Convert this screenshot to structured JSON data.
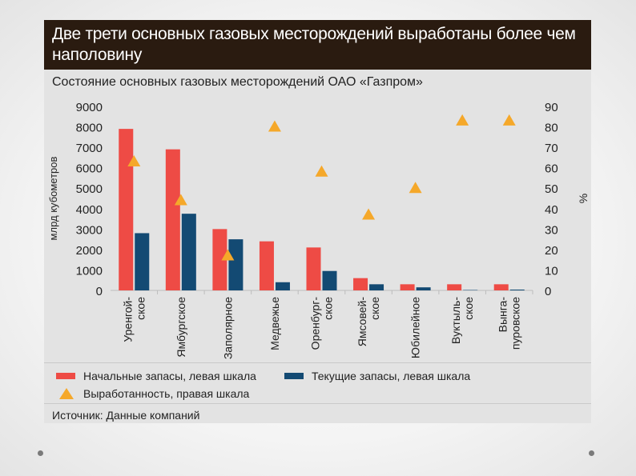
{
  "title": "Две трети основных газовых месторождений выработаны более чем наполовину",
  "chart_data": {
    "type": "bar",
    "title": "Состояние основных газовых месторождений ОАО «Газпром»",
    "ylabel": "млрд кубометров",
    "y2label": "%",
    "ylim": [
      0,
      9000
    ],
    "y2lim": [
      0,
      90
    ],
    "yticks": [
      "0",
      "1000",
      "2000",
      "3000",
      "4000",
      "5000",
      "6000",
      "7000",
      "8000",
      "9000"
    ],
    "y2ticks": [
      "0",
      "10",
      "20",
      "30",
      "40",
      "50",
      "60",
      "70",
      "80",
      "90"
    ],
    "categories": [
      [
        "Уренгой-",
        "ское"
      ],
      [
        "Ямбургское"
      ],
      [
        "Заполярное"
      ],
      [
        "Медвежье"
      ],
      [
        "Оренбург-",
        "ское"
      ],
      [
        "Ямсовей-",
        "ское"
      ],
      [
        "Юбилейное"
      ],
      [
        "Вуктыль-",
        "ское"
      ],
      [
        "Вынга-",
        "пуровское"
      ]
    ],
    "series": [
      {
        "name": "Начальные запасы, левая шкала",
        "axis": "left",
        "kind": "bar",
        "color": "#ee4b45",
        "values": [
          7900,
          6900,
          3000,
          2400,
          2100,
          600,
          300,
          300,
          300
        ]
      },
      {
        "name": "Текущие запасы, левая шкала",
        "axis": "left",
        "kind": "bar",
        "color": "#134a73",
        "values": [
          2800,
          3750,
          2500,
          400,
          950,
          300,
          150,
          20,
          40
        ]
      },
      {
        "name": "Выработанность, правая шкала",
        "axis": "right",
        "kind": "marker",
        "color": "#f5a82a",
        "values": [
          63,
          44,
          17,
          80,
          58,
          37,
          50,
          83,
          83
        ]
      }
    ]
  },
  "legend": {
    "initial": "Начальные запасы, левая шкала",
    "current": "Текущие запасы, левая шкала",
    "depletion": "Выработанность, правая шкала"
  },
  "colors": {
    "initial": "#ee4b45",
    "current": "#134a73",
    "depletion": "#f5a82a",
    "title_bg": "#2a1b10"
  },
  "source": "Источник: Данные компаний"
}
